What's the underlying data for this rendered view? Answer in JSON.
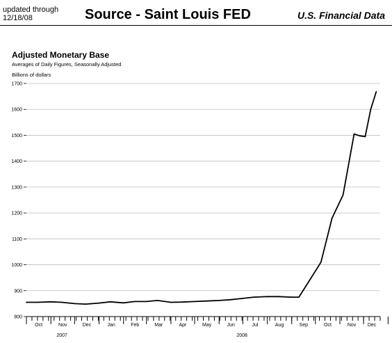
{
  "header": {
    "updated_line1": "updated through",
    "updated_line2": "12/18/08",
    "title": "Source - Saint Louis FED",
    "right": "U.S. Financial Data"
  },
  "chart_data": {
    "type": "line",
    "title": "Adjusted Monetary Base",
    "subtitle": "Averages of Daily Figures, Seasonally Adjusted",
    "ylabel": "Billions of dollars",
    "xlabel": "",
    "ylim": [
      800,
      1700
    ],
    "yticks": [
      "800",
      "900",
      "1000",
      "1100",
      "1200",
      "1300",
      "1400",
      "1500",
      "1600",
      "1700"
    ],
    "grid": true,
    "months": [
      "Oct",
      "Nov",
      "Dec",
      "Jan",
      "Feb",
      "Mar",
      "Apr",
      "May",
      "Jun",
      "Jul",
      "Aug",
      "Sep",
      "Oct",
      "Nov",
      "Dec"
    ],
    "years": [
      "2007",
      "2008"
    ],
    "series": [
      {
        "x": [
          "2007-10-01",
          "2007-10-15",
          "2007-11-01",
          "2007-11-15",
          "2007-12-01",
          "2007-12-15",
          "2008-01-01",
          "2008-01-15",
          "2008-02-01",
          "2008-02-15",
          "2008-03-01",
          "2008-03-15",
          "2008-04-01",
          "2008-04-15",
          "2008-05-01",
          "2008-05-15",
          "2008-06-01",
          "2008-06-15",
          "2008-07-01",
          "2008-07-15",
          "2008-08-01",
          "2008-08-15",
          "2008-09-01",
          "2008-09-10",
          "2008-09-24",
          "2008-10-08",
          "2008-10-22",
          "2008-11-05",
          "2008-11-19",
          "2008-11-26",
          "2008-12-03",
          "2008-12-10",
          "2008-12-17"
        ],
        "values": [
          855,
          855,
          857,
          855,
          850,
          848,
          852,
          857,
          853,
          858,
          858,
          862,
          855,
          856,
          858,
          860,
          862,
          865,
          870,
          875,
          877,
          877,
          875,
          875,
          942,
          1010,
          1180,
          1270,
          1505,
          1498,
          1495,
          1600,
          1668
        ]
      }
    ]
  }
}
